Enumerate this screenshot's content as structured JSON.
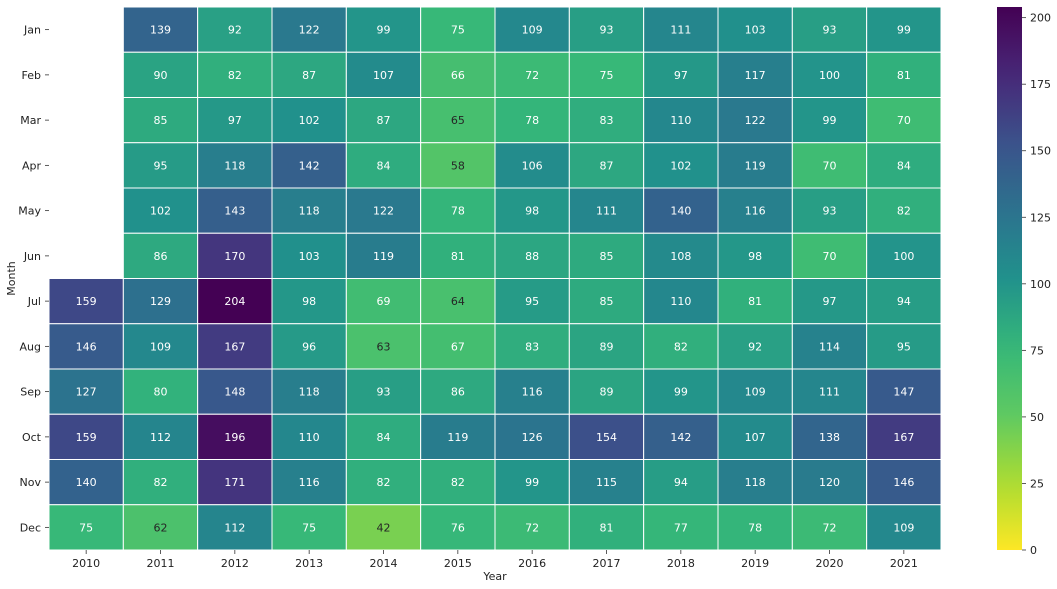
{
  "chart_data": {
    "type": "heatmap",
    "xlabel": "Year",
    "ylabel": "Month",
    "x_categories": [
      "2010",
      "2011",
      "2012",
      "2013",
      "2014",
      "2015",
      "2016",
      "2017",
      "2018",
      "2019",
      "2020",
      "2021"
    ],
    "y_categories": [
      "Jan",
      "Feb",
      "Mar",
      "Apr",
      "May",
      "Jun",
      "Jul",
      "Aug",
      "Sep",
      "Oct",
      "Nov",
      "Dec"
    ],
    "values": [
      [
        null,
        139,
        92,
        122,
        99,
        75,
        109,
        93,
        111,
        103,
        93,
        99
      ],
      [
        null,
        90,
        82,
        87,
        107,
        66,
        72,
        75,
        97,
        117,
        100,
        81
      ],
      [
        null,
        85,
        97,
        102,
        87,
        65,
        78,
        83,
        110,
        122,
        99,
        70
      ],
      [
        null,
        95,
        118,
        142,
        84,
        58,
        106,
        87,
        102,
        119,
        70,
        84
      ],
      [
        null,
        102,
        143,
        118,
        122,
        78,
        98,
        111,
        140,
        116,
        93,
        82
      ],
      [
        null,
        86,
        170,
        103,
        119,
        81,
        88,
        85,
        108,
        98,
        70,
        100
      ],
      [
        159,
        129,
        204,
        98,
        69,
        64,
        95,
        85,
        110,
        81,
        97,
        94
      ],
      [
        146,
        109,
        167,
        96,
        63,
        67,
        83,
        89,
        82,
        92,
        114,
        95
      ],
      [
        127,
        80,
        148,
        118,
        93,
        86,
        116,
        89,
        99,
        109,
        111,
        147
      ],
      [
        159,
        112,
        196,
        110,
        84,
        119,
        126,
        154,
        142,
        107,
        138,
        167
      ],
      [
        140,
        82,
        171,
        116,
        82,
        82,
        99,
        115,
        94,
        118,
        120,
        146
      ],
      [
        75,
        62,
        112,
        75,
        42,
        76,
        72,
        81,
        77,
        78,
        72,
        109
      ]
    ],
    "colormap": "viridis_r",
    "vmin": 0,
    "vmax": 204,
    "colorbar_ticks": [
      0,
      25,
      50,
      75,
      100,
      125,
      150,
      175,
      200
    ],
    "annotations": true
  }
}
